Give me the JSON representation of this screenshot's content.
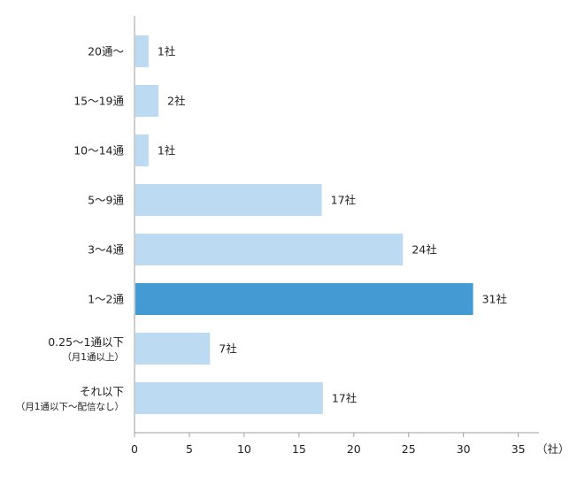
{
  "chart_data": {
    "type": "bar",
    "orientation": "horizontal",
    "categories": [
      {
        "label": "20通～",
        "sublabel": ""
      },
      {
        "label": "15～19通",
        "sublabel": ""
      },
      {
        "label": "10～14通",
        "sublabel": ""
      },
      {
        "label": "5～9通",
        "sublabel": ""
      },
      {
        "label": "3～4通",
        "sublabel": ""
      },
      {
        "label": "1～2通",
        "sublabel": ""
      },
      {
        "label": "0.25～1通以下",
        "sublabel": "（月1通以上）"
      },
      {
        "label": "それ以下",
        "sublabel": "（月1通以下～配信なし）"
      }
    ],
    "values": [
      1.2,
      2.1,
      1.2,
      17,
      24.4,
      30.8,
      6.8,
      17.1
    ],
    "value_labels": [
      "1社",
      "2社",
      "1社",
      "17社",
      "24社",
      "31社",
      "7社",
      "17社"
    ],
    "highlight_index": 5,
    "colors": {
      "bar": "#bcdaf2",
      "highlight": "#449bd4",
      "axis": "#9e9e9e"
    },
    "xlim": [
      0,
      37
    ],
    "xticks": [
      "0",
      "5",
      "10",
      "15",
      "20",
      "25",
      "30",
      "35"
    ],
    "x_unit": "（社）",
    "grid": false,
    "legend": "none"
  }
}
